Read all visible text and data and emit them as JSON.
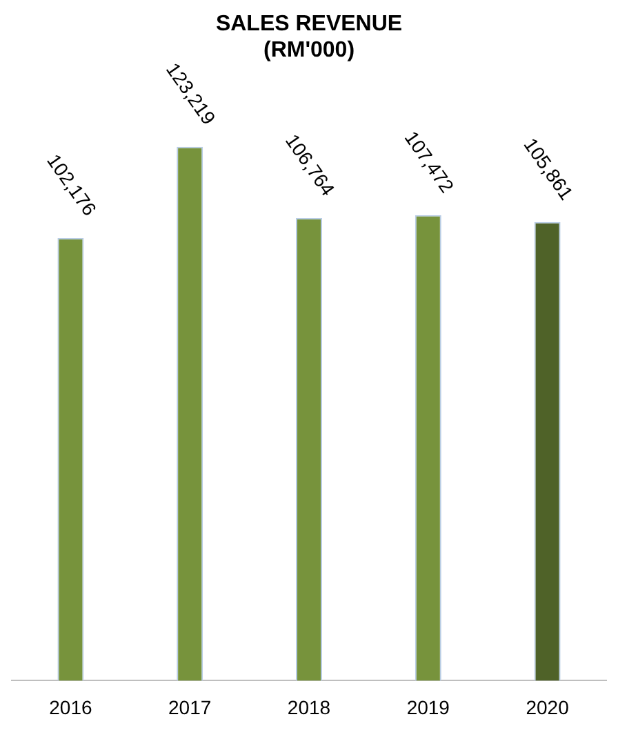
{
  "chart_data": {
    "type": "bar",
    "title": [
      "SALES REVENUE",
      "(RM'000)"
    ],
    "categories": [
      "2016",
      "2017",
      "2018",
      "2019",
      "2020"
    ],
    "values": [
      102176,
      123219,
      106764,
      107472,
      105861
    ],
    "value_labels": [
      "102,176",
      "123,219",
      "106,764",
      "107,472",
      "105,861"
    ],
    "colors": [
      "#77933c",
      "#77933c",
      "#77933c",
      "#77933c",
      "#4f6228"
    ],
    "grid": false,
    "legend": false
  }
}
